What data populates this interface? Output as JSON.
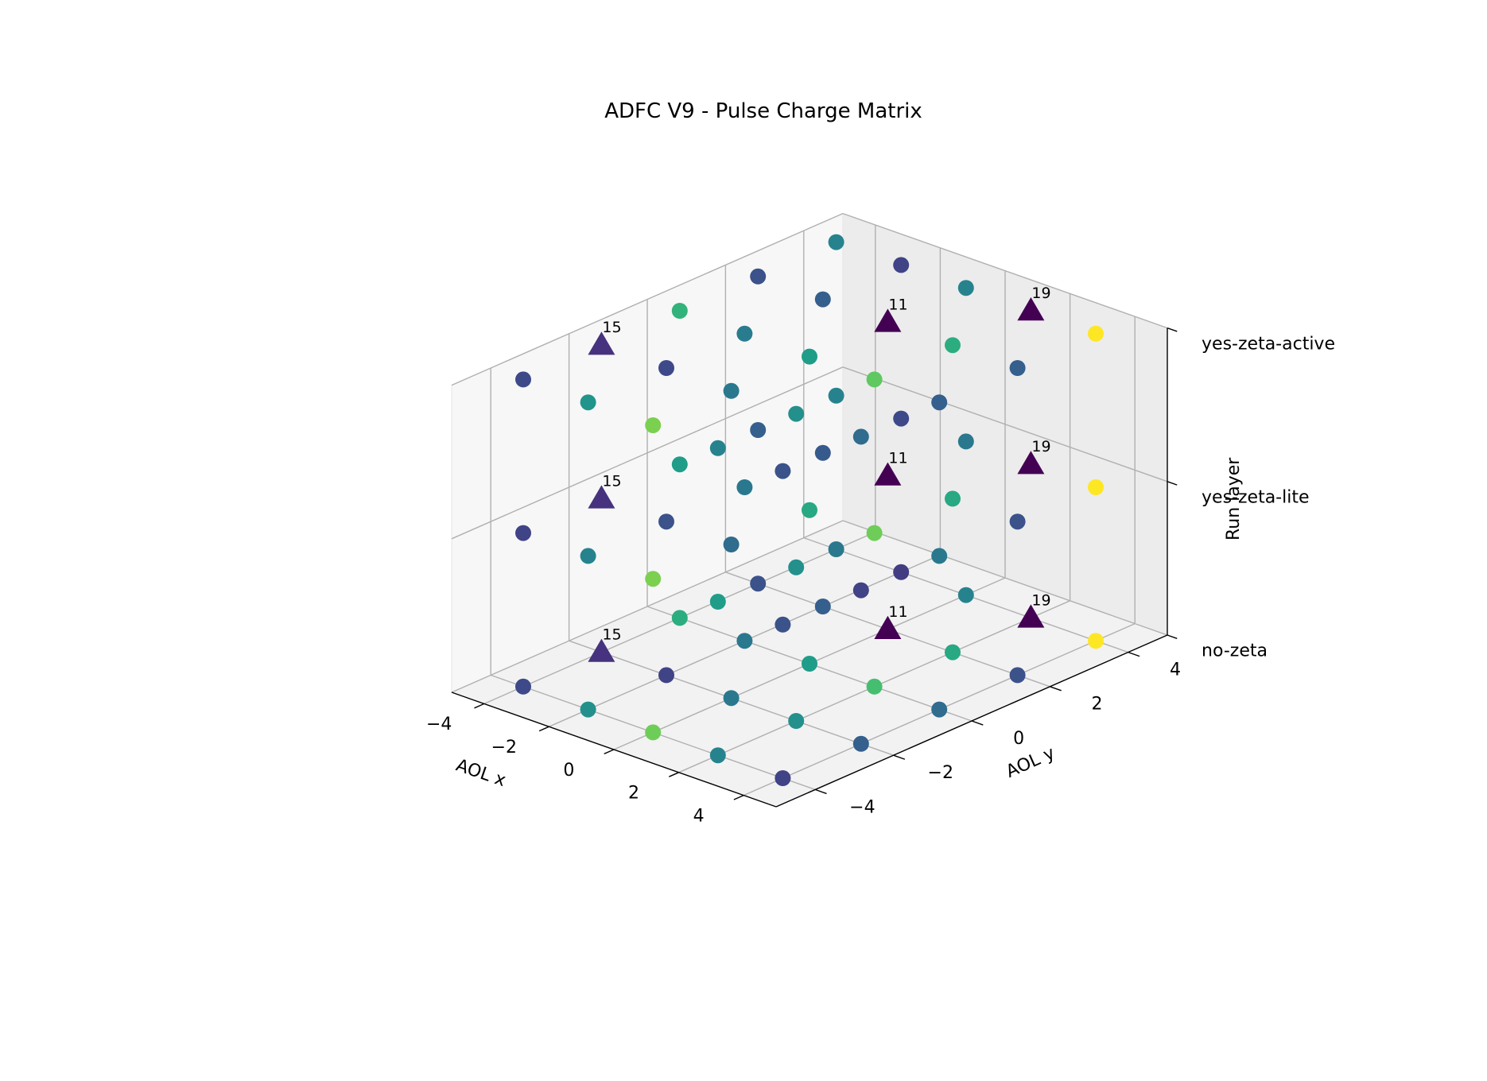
{
  "chart_data": {
    "type": "scatter",
    "projection": "3d",
    "title": "ADFC V9 - Pulse Charge Matrix",
    "xlabel": "AOL x",
    "ylabel": "AOL y",
    "zlabel": "Run layer",
    "xlim": [
      -5,
      5
    ],
    "ylim": [
      -5,
      5
    ],
    "zlim": [
      0,
      2
    ],
    "x_ticks": [
      -4,
      -2,
      0,
      2,
      4
    ],
    "y_ticks": [
      -4,
      -2,
      0,
      2,
      4
    ],
    "z_ticks": [
      "no-zeta",
      "yes-zeta-lite",
      "yes-zeta-active"
    ],
    "grid": true,
    "colormap": "viridis",
    "color_range": [
      0,
      1
    ],
    "grid_points": [
      -4,
      -2,
      0,
      2,
      4
    ],
    "layers": [
      {
        "name": "no-zeta",
        "colors": [
          [
            0.22,
            0.5,
            0.78,
            0.45,
            0.2
          ],
          [
            0.25,
            0.2,
            0.4,
            0.5,
            0.3
          ],
          [
            0.62,
            0.4,
            0.55,
            0.7,
            0.35
          ],
          [
            0.25,
            0.3,
            0.45,
            0.6,
            0.25
          ],
          [
            0.4,
            0.18,
            0.45,
            0.4,
            0.3
          ]
        ]
      },
      {
        "name": "yes-zeta-lite",
        "colors": [
          [
            0.2,
            0.45,
            0.8,
            0.55,
            0.25
          ],
          [
            0.3,
            0.25,
            0.35,
            0.5,
            0.2
          ],
          [
            0.55,
            0.4,
            0.6,
            0.78,
            0.4
          ],
          [
            0.3,
            0.28,
            0.45,
            0.6,
            0.25
          ],
          [
            0.45,
            0.22,
            0.4,
            0.35,
            0.3
          ]
        ]
      },
      {
        "name": "yes-zeta-active",
        "colors": [
          [
            0.22,
            0.52,
            0.8,
            0.45,
            0.25
          ],
          [
            0.28,
            0.22,
            0.4,
            0.5,
            0.35
          ],
          [
            0.65,
            0.42,
            0.55,
            0.75,
            0.3
          ],
          [
            0.25,
            0.3,
            0.45,
            0.62,
            0.3
          ],
          [
            0.45,
            0.2,
            0.45,
            0.38,
            0.33
          ]
        ]
      }
    ],
    "triangles": [
      {
        "x": -4,
        "y": -2,
        "z": 0,
        "label": "15",
        "color": "#46327e"
      },
      {
        "x": -4,
        "y": -2,
        "z": 1,
        "label": "15",
        "color": "#46327e"
      },
      {
        "x": -4,
        "y": -2,
        "z": 2,
        "label": "15",
        "color": "#46327e"
      },
      {
        "x": 0,
        "y": 2,
        "z": 0,
        "label": "11",
        "color": "#440154"
      },
      {
        "x": 0,
        "y": 2,
        "z": 1,
        "label": "11",
        "color": "#440154"
      },
      {
        "x": 0,
        "y": 2,
        "z": 2,
        "label": "11",
        "color": "#440154"
      },
      {
        "x": 2,
        "y": 4,
        "z": 0,
        "label": "19",
        "color": "#440154"
      },
      {
        "x": 2,
        "y": 4,
        "z": 1,
        "label": "19",
        "color": "#440154"
      },
      {
        "x": 2,
        "y": 4,
        "z": 2,
        "label": "19",
        "color": "#440154"
      }
    ],
    "special_points": [
      {
        "x": 4,
        "y": 4,
        "z": 0,
        "color": "#fde725"
      },
      {
        "x": 4,
        "y": 4,
        "z": 1,
        "color": "#fde725"
      },
      {
        "x": 4,
        "y": 4,
        "z": 2,
        "color": "#fde725"
      }
    ]
  }
}
